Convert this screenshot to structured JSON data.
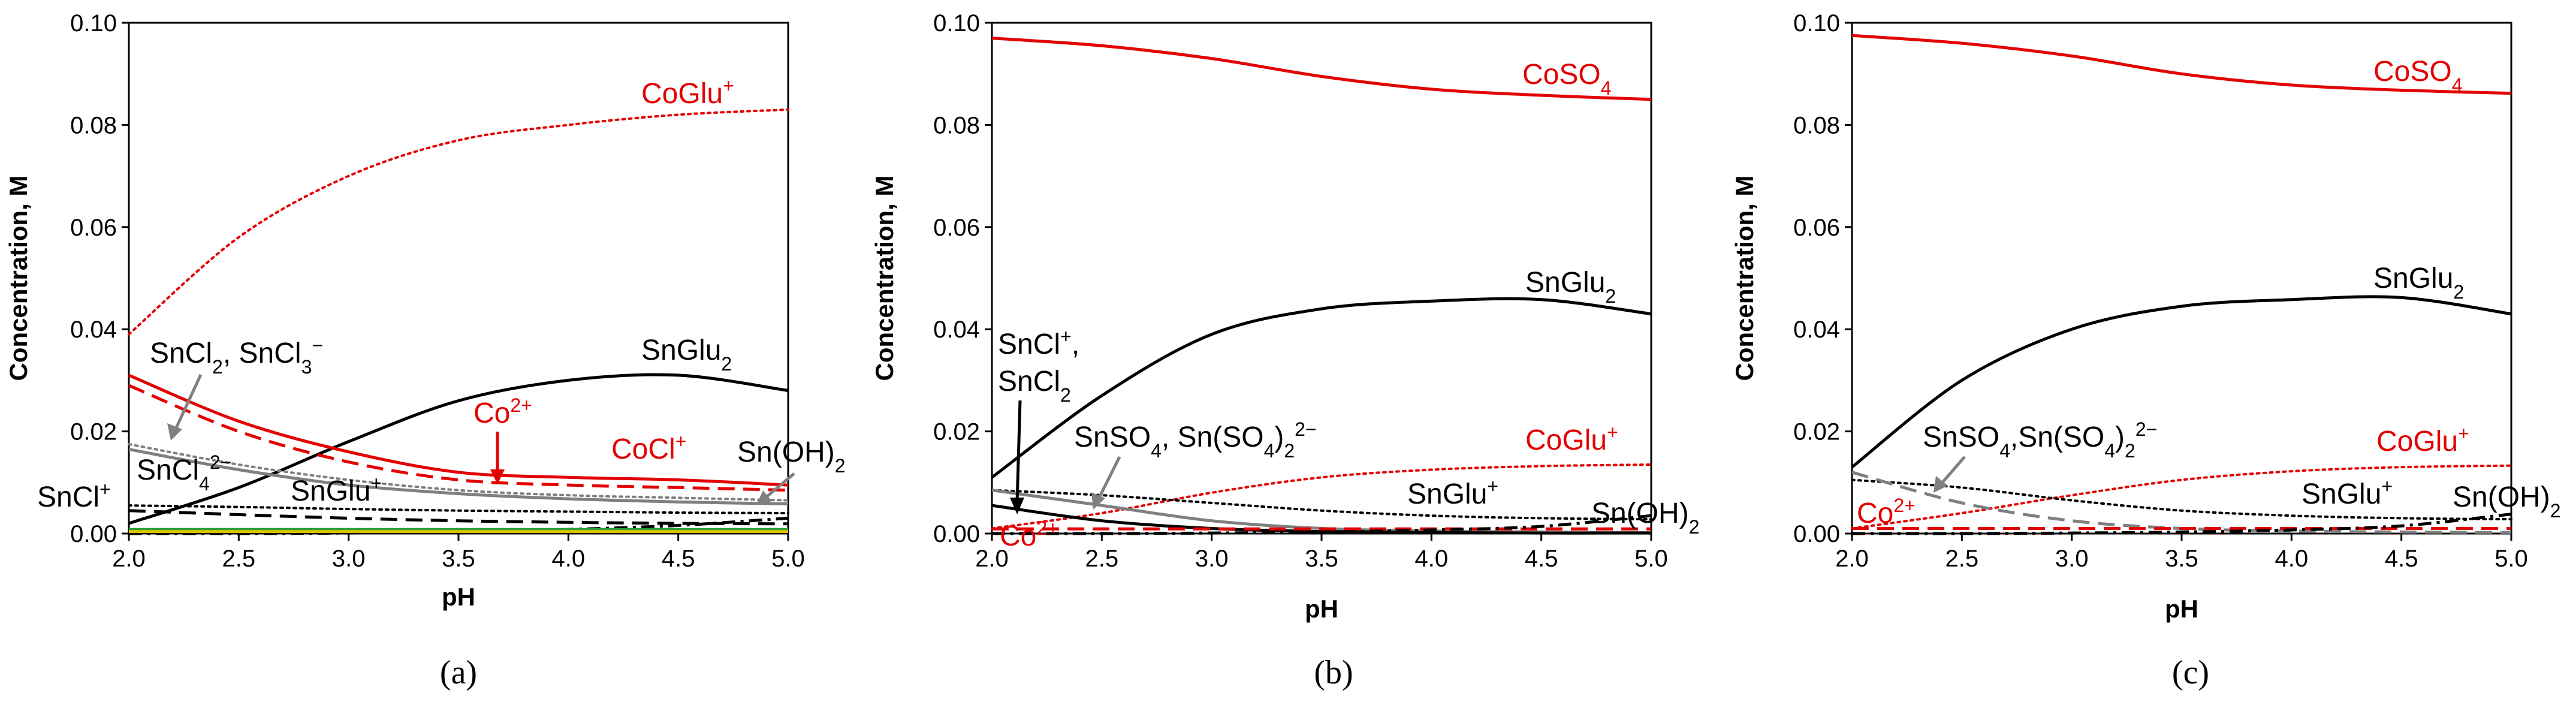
{
  "chart_data": [
    {
      "type": "line",
      "panel_label": "(a)",
      "xlabel": "pH",
      "ylabel": "Concentration, M",
      "xlim": [
        2.0,
        5.0
      ],
      "ylim": [
        0,
        0.1
      ],
      "x_ticks": [
        "2.0",
        "2.5",
        "3.0",
        "3.5",
        "4.0",
        "4.5",
        "5.0"
      ],
      "y_ticks": [
        "0.00",
        "0.02",
        "0.04",
        "0.06",
        "0.08",
        "0.10"
      ],
      "grid": false,
      "x": [
        2.0,
        2.5,
        3.0,
        3.5,
        4.0,
        4.5,
        5.0
      ],
      "series": [
        {
          "name": "CoGlu+",
          "color": "#e30000",
          "style": "dotted",
          "values": [
            0.039,
            0.058,
            0.07,
            0.077,
            0.08,
            0.082,
            0.083
          ]
        },
        {
          "name": "SnGlu2",
          "color": "#000000",
          "style": "solid",
          "values": [
            0.002,
            0.009,
            0.018,
            0.026,
            0.03,
            0.031,
            0.028
          ]
        },
        {
          "name": "Co2+",
          "color": "#e30000",
          "style": "solid",
          "values": [
            0.031,
            0.022,
            0.016,
            0.012,
            0.011,
            0.0105,
            0.0095
          ]
        },
        {
          "name": "CoCl+",
          "color": "#e30000",
          "style": "dashed",
          "values": [
            0.029,
            0.02,
            0.014,
            0.0105,
            0.0095,
            0.009,
            0.0085
          ]
        },
        {
          "name": "SnCl2, SnCl3-",
          "color": "#7f7f7f",
          "style": "dotted",
          "values": [
            0.0175,
            0.0135,
            0.0105,
            0.0085,
            0.0075,
            0.007,
            0.0065
          ]
        },
        {
          "name": "SnCl4 2-",
          "color": "#7f7f7f",
          "style": "solid",
          "values": [
            0.0165,
            0.0125,
            0.0095,
            0.0078,
            0.0068,
            0.0062,
            0.0058
          ]
        },
        {
          "name": "SnGlu+",
          "color": "#000000",
          "style": "dotted",
          "values": [
            0.0055,
            0.0052,
            0.0048,
            0.0045,
            0.0043,
            0.0041,
            0.004
          ]
        },
        {
          "name": "SnCl+",
          "color": "#000000",
          "style": "dashed",
          "values": [
            0.0045,
            0.0037,
            0.003,
            0.0025,
            0.0022,
            0.002,
            0.0019
          ]
        },
        {
          "name": "Sn(OH)2",
          "color": "#000000",
          "style": "dashdot",
          "values": [
            0.0,
            0.0,
            0.0001,
            0.0003,
            0.0008,
            0.0016,
            0.003
          ]
        },
        {
          "name": "green baseline",
          "color": "#2ca02c",
          "style": "solid",
          "values": [
            0.0008,
            0.0008,
            0.0008,
            0.0008,
            0.0008,
            0.0008,
            0.0008
          ]
        },
        {
          "name": "yellow baseline",
          "color": "#d8c200",
          "style": "solid",
          "values": [
            0.0004,
            0.0004,
            0.0004,
            0.0004,
            0.0004,
            0.0004,
            0.0004
          ]
        }
      ],
      "annotations": [
        {
          "text": "CoGlu",
          "sup": "+",
          "color": "#e30000"
        },
        {
          "text": "SnCl",
          "sub": "2",
          "tail": ", SnCl",
          "sub2": "3",
          "sup2": "−",
          "color": "#000000"
        },
        {
          "text": "SnGlu",
          "sub": "2",
          "color": "#000000"
        },
        {
          "text": "Co",
          "sup": "2+",
          "color": "#e30000"
        },
        {
          "text": "CoCl",
          "sup": "+",
          "color": "#e30000"
        },
        {
          "text": "Sn(OH)",
          "sub": "2",
          "color": "#000000"
        },
        {
          "text": "SnCl",
          "sub": "4",
          "sup": "2−",
          "color": "#000000"
        },
        {
          "text": "SnCl",
          "sup": "+",
          "color": "#000000"
        },
        {
          "text": "SnGlu",
          "sup": "+",
          "color": "#000000"
        }
      ]
    },
    {
      "type": "line",
      "panel_label": "(b)",
      "xlabel": "pH",
      "ylabel": "Concentration, M",
      "xlim": [
        2.0,
        5.0
      ],
      "ylim": [
        0,
        0.1
      ],
      "x_ticks": [
        "2.0",
        "2.5",
        "3.0",
        "3.5",
        "4.0",
        "4.5",
        "5.0"
      ],
      "y_ticks": [
        "0.00",
        "0.02",
        "0.04",
        "0.06",
        "0.08",
        "0.10"
      ],
      "grid": false,
      "x": [
        2.0,
        2.5,
        3.0,
        3.5,
        4.0,
        4.5,
        5.0
      ],
      "series": [
        {
          "name": "CoSO4",
          "color": "#e30000",
          "style": "solid",
          "values": [
            0.097,
            0.0955,
            0.093,
            0.0895,
            0.087,
            0.0858,
            0.085
          ]
        },
        {
          "name": "SnGlu2",
          "color": "#000000",
          "style": "solid",
          "values": [
            0.011,
            0.027,
            0.039,
            0.044,
            0.0455,
            0.0458,
            0.043
          ]
        },
        {
          "name": "CoGlu+",
          "color": "#e30000",
          "style": "dotted",
          "values": [
            0.001,
            0.004,
            0.008,
            0.011,
            0.0125,
            0.0132,
            0.0135
          ]
        },
        {
          "name": "SnGlu+",
          "color": "#000000",
          "style": "dotted",
          "values": [
            0.0085,
            0.0075,
            0.006,
            0.0045,
            0.0035,
            0.003,
            0.0028
          ]
        },
        {
          "name": "SnSO4, Sn(SO4)2 2-",
          "color": "#7f7f7f",
          "style": "solid",
          "values": [
            0.0085,
            0.0055,
            0.0025,
            0.001,
            0.0005,
            0.0003,
            0.0002
          ]
        },
        {
          "name": "SnCl+, SnCl2",
          "color": "#000000",
          "style": "solid",
          "values": [
            0.0055,
            0.0025,
            0.001,
            0.0004,
            0.0002,
            0.0001,
            0.0001
          ]
        },
        {
          "name": "Co2+",
          "color": "#e30000",
          "style": "dashed",
          "values": [
            0.0009,
            0.0009,
            0.0009,
            0.0009,
            0.0009,
            0.0009,
            0.0009
          ]
        },
        {
          "name": "Sn(OH)2",
          "color": "#000000",
          "style": "dashdot",
          "values": [
            0.0,
            0.0,
            0.0001,
            0.0003,
            0.0007,
            0.0014,
            0.0035
          ]
        }
      ],
      "annotations": [
        {
          "text": "CoSO",
          "sub": "4",
          "color": "#e30000"
        },
        {
          "text": "SnGlu",
          "sub": "2",
          "color": "#000000"
        },
        {
          "text": "SnCl",
          "sup": "+",
          "tail": ",",
          "color": "#000000"
        },
        {
          "text": "SnCl",
          "sub": "2",
          "color": "#000000"
        },
        {
          "text": "SnSO",
          "sub": "4",
          "tail": ", Sn(SO",
          "sub2": "4",
          "tail2": ")",
          "sub3": "2",
          "sup3": "2−",
          "color": "#000000"
        },
        {
          "text": "CoGlu",
          "sup": "+",
          "color": "#e30000"
        },
        {
          "text": "SnGlu",
          "sup": "+",
          "color": "#000000"
        },
        {
          "text": "Sn(OH)",
          "sub": "2",
          "color": "#000000"
        },
        {
          "text": "Co",
          "sup": "2+",
          "color": "#e30000"
        }
      ]
    },
    {
      "type": "line",
      "panel_label": "(c)",
      "xlabel": "pH",
      "ylabel": "Concentration, M",
      "xlim": [
        2.0,
        5.0
      ],
      "ylim": [
        0,
        0.1
      ],
      "x_ticks": [
        "2.0",
        "2.5",
        "3.0",
        "3.5",
        "4.0",
        "4.5",
        "5.0"
      ],
      "y_ticks": [
        "0.00",
        "0.02",
        "0.04",
        "0.06",
        "0.08",
        "0.10"
      ],
      "grid": false,
      "x": [
        2.0,
        2.5,
        3.0,
        3.5,
        4.0,
        4.5,
        5.0
      ],
      "series": [
        {
          "name": "CoSO4",
          "color": "#e30000",
          "style": "solid",
          "values": [
            0.0975,
            0.096,
            0.0935,
            0.09,
            0.0878,
            0.0868,
            0.0862
          ]
        },
        {
          "name": "SnGlu2",
          "color": "#000000",
          "style": "solid",
          "values": [
            0.013,
            0.03,
            0.04,
            0.0445,
            0.0458,
            0.0462,
            0.043
          ]
        },
        {
          "name": "CoGlu+",
          "color": "#e30000",
          "style": "dotted",
          "values": [
            0.001,
            0.004,
            0.0075,
            0.0105,
            0.0122,
            0.013,
            0.0133
          ]
        },
        {
          "name": "SnGlu+",
          "color": "#000000",
          "style": "dotted",
          "values": [
            0.0105,
            0.009,
            0.0065,
            0.0045,
            0.0035,
            0.003,
            0.0028
          ]
        },
        {
          "name": "SnSO4, Sn(SO4)2 2-",
          "color": "#7f7f7f",
          "style": "dashed",
          "values": [
            0.012,
            0.006,
            0.0025,
            0.001,
            0.0005,
            0.0003,
            0.0002
          ]
        },
        {
          "name": "Co2+",
          "color": "#e30000",
          "style": "dashed",
          "values": [
            0.001,
            0.001,
            0.001,
            0.001,
            0.001,
            0.001,
            0.001
          ]
        },
        {
          "name": "Sn(OH)2",
          "color": "#000000",
          "style": "dashdot",
          "values": [
            0.0,
            0.0,
            0.0001,
            0.0003,
            0.0007,
            0.0015,
            0.0038
          ]
        }
      ],
      "annotations": [
        {
          "text": "CoSO",
          "sub": "4",
          "color": "#e30000"
        },
        {
          "text": "SnGlu",
          "sub": "2",
          "color": "#000000"
        },
        {
          "text": "SnSO",
          "sub": "4",
          "tail": ",Sn(SO",
          "sub2": "4",
          "tail2": ")",
          "sub3": "2",
          "sup3": "2−",
          "color": "#000000"
        },
        {
          "text": "CoGlu",
          "sup": "+",
          "color": "#e30000"
        },
        {
          "text": "SnGlu",
          "sup": "+",
          "color": "#000000"
        },
        {
          "text": "Sn(OH)",
          "sub": "2",
          "color": "#000000"
        },
        {
          "text": "Co",
          "sup": "2+",
          "color": "#e30000"
        }
      ]
    }
  ]
}
